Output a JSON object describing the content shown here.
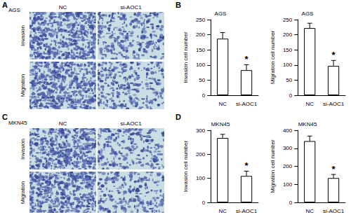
{
  "panel_labels": [
    "A",
    "B",
    "C",
    "D"
  ],
  "image_panels": [
    {
      "title": "AGS",
      "columns": [
        "NC",
        "si-AOC1"
      ],
      "rows": [
        "Invasion",
        "Migration"
      ]
    },
    {
      "title": "MKN45",
      "columns": [
        "NC",
        "si-AOC1"
      ],
      "rows": [
        "Invasion",
        "Migration"
      ]
    }
  ],
  "chart_data": [
    {
      "type": "bar",
      "title": "AGS",
      "categories": [
        "NC",
        "si-AOC1"
      ],
      "values": [
        187,
        83
      ],
      "errors": [
        20,
        18
      ],
      "y_label": "Invasion cell number",
      "ylim": [
        0,
        250
      ],
      "yticks": [
        0,
        50,
        100,
        150,
        200,
        250
      ],
      "color": "#ffffff",
      "annotations": [
        {
          "category": "si-AOC1",
          "text": "*"
        }
      ]
    },
    {
      "type": "bar",
      "title": "AGS",
      "categories": [
        "NC",
        "si-AOC1"
      ],
      "values": [
        222,
        97
      ],
      "errors": [
        16,
        18
      ],
      "y_label": "Migration cell number",
      "ylim": [
        0,
        250
      ],
      "yticks": [
        0,
        50,
        100,
        150,
        200,
        250
      ],
      "color": "#ffffff",
      "annotations": [
        {
          "category": "si-AOC1",
          "text": "*"
        }
      ]
    },
    {
      "type": "bar",
      "title": "MKN45",
      "categories": [
        "NC",
        "si-AOC1"
      ],
      "values": [
        268,
        110
      ],
      "errors": [
        15,
        20
      ],
      "y_label": "Invasion cell number",
      "ylim": [
        0,
        300
      ],
      "yticks": [
        0,
        100,
        200,
        300
      ],
      "color": "#ffffff",
      "annotations": [
        {
          "category": "si-AOC1",
          "text": "*"
        }
      ]
    },
    {
      "type": "bar",
      "title": "MKN45",
      "categories": [
        "NC",
        "si-AOC1"
      ],
      "values": [
        340,
        135
      ],
      "errors": [
        28,
        20
      ],
      "y_label": "Migration cell number",
      "ylim": [
        0,
        400
      ],
      "yticks": [
        0,
        100,
        200,
        300,
        400
      ],
      "color": "#ffffff",
      "annotations": [
        {
          "category": "si-AOC1",
          "text": "*"
        }
      ]
    }
  ]
}
